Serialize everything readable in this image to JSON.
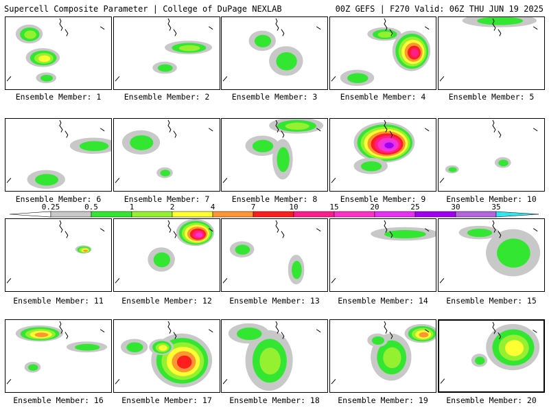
{
  "header": {
    "title": "Supercell Composite Parameter | College of DuPage NEXLAB",
    "run_info": "00Z GEFS | F270 Valid: 06Z THU JUN 19 2025"
  },
  "legend": {
    "levels": [
      {
        "label": "0.25",
        "color": "#c8c8c8"
      },
      {
        "label": "0.5",
        "color": "#32e632"
      },
      {
        "label": "1",
        "color": "#96f032"
      },
      {
        "label": "2",
        "color": "#ffff32"
      },
      {
        "label": "4",
        "color": "#ff9632"
      },
      {
        "label": "7",
        "color": "#ff1e1e"
      },
      {
        "label": "10",
        "color": "#ff1e8c"
      },
      {
        "label": "15",
        "color": "#ff32c8"
      },
      {
        "label": "20",
        "color": "#e632f0"
      },
      {
        "label": "25",
        "color": "#a000f0"
      },
      {
        "label": "30",
        "color": "#b464dc"
      },
      {
        "label": "35",
        "color": "#32e6f0"
      }
    ]
  },
  "members": [
    {
      "label": "Ensemble Member: 1",
      "blobs": [
        [
          35,
          25,
          20,
          14,
          2
        ],
        [
          55,
          60,
          25,
          14,
          3
        ],
        [
          60,
          90,
          15,
          8,
          1
        ]
      ]
    },
    {
      "label": "Ensemble Member: 2",
      "blobs": [
        [
          110,
          45,
          35,
          10,
          2
        ],
        [
          75,
          75,
          18,
          9,
          1
        ]
      ]
    },
    {
      "label": "Ensemble Member: 3",
      "blobs": [
        [
          95,
          65,
          25,
          22,
          1
        ],
        [
          60,
          35,
          20,
          15,
          1
        ]
      ]
    },
    {
      "label": "Ensemble Member: 4",
      "blobs": [
        [
          120,
          50,
          28,
          30,
          6
        ],
        [
          80,
          25,
          25,
          10,
          2
        ],
        [
          40,
          90,
          25,
          12,
          1
        ]
      ]
    },
    {
      "label": "Ensemble Member: 5",
      "blobs": [
        [
          90,
          5,
          55,
          10,
          1
        ]
      ]
    },
    {
      "label": "Ensemble Member: 6",
      "blobs": [
        [
          130,
          40,
          35,
          12,
          1
        ],
        [
          60,
          90,
          28,
          14,
          1
        ]
      ]
    },
    {
      "label": "Ensemble Member: 7",
      "blobs": [
        [
          40,
          35,
          28,
          18,
          1
        ],
        [
          75,
          80,
          12,
          8,
          1
        ]
      ]
    },
    {
      "label": "Ensemble Member: 8",
      "blobs": [
        [
          110,
          10,
          40,
          12,
          2
        ],
        [
          90,
          60,
          15,
          30,
          1
        ],
        [
          60,
          40,
          25,
          15,
          1
        ]
      ]
    },
    {
      "label": "Ensemble Member: 9",
      "blobs": [
        [
          80,
          35,
          45,
          30,
          9
        ],
        [
          60,
          70,
          25,
          12,
          1
        ]
      ]
    },
    {
      "label": "Ensemble Member: 10",
      "blobs": [
        [
          95,
          65,
          12,
          8,
          1
        ],
        [
          20,
          75,
          10,
          6,
          1
        ]
      ]
    },
    {
      "label": "Ensemble Member: 11",
      "blobs": [
        [
          115,
          45,
          12,
          6,
          4
        ]
      ]
    },
    {
      "label": "Ensemble Member: 12",
      "blobs": [
        [
          120,
          20,
          28,
          20,
          7
        ],
        [
          70,
          60,
          20,
          18,
          1
        ]
      ]
    },
    {
      "label": "Ensemble Member: 13",
      "blobs": [
        [
          110,
          75,
          12,
          22,
          1
        ],
        [
          30,
          45,
          18,
          12,
          1
        ]
      ]
    },
    {
      "label": "Ensemble Member: 14",
      "blobs": [
        [
          110,
          22,
          50,
          10,
          1
        ]
      ]
    },
    {
      "label": "Ensemble Member: 15",
      "blobs": [
        [
          110,
          50,
          40,
          35,
          1
        ],
        [
          60,
          20,
          30,
          10,
          1
        ]
      ]
    },
    {
      "label": "Ensemble Member: 16",
      "blobs": [
        [
          50,
          20,
          35,
          12,
          4
        ],
        [
          120,
          40,
          30,
          8,
          1
        ],
        [
          40,
          70,
          12,
          8,
          1
        ]
      ]
    },
    {
      "label": "Ensemble Member: 17",
      "blobs": [
        [
          100,
          60,
          45,
          40,
          5
        ],
        [
          70,
          40,
          18,
          12,
          3
        ],
        [
          30,
          40,
          20,
          12,
          1
        ]
      ]
    },
    {
      "label": "Ensemble Member: 18",
      "blobs": [
        [
          70,
          60,
          35,
          45,
          2
        ],
        [
          40,
          20,
          30,
          15,
          1
        ]
      ]
    },
    {
      "label": "Ensemble Member: 19",
      "blobs": [
        [
          135,
          20,
          25,
          14,
          4
        ],
        [
          90,
          55,
          30,
          35,
          2
        ],
        [
          70,
          30,
          15,
          10,
          1
        ]
      ]
    },
    {
      "label": "Ensemble Member: 20",
      "blobs": [
        [
          110,
          40,
          40,
          35,
          3
        ],
        [
          60,
          60,
          12,
          10,
          1
        ]
      ]
    }
  ]
}
